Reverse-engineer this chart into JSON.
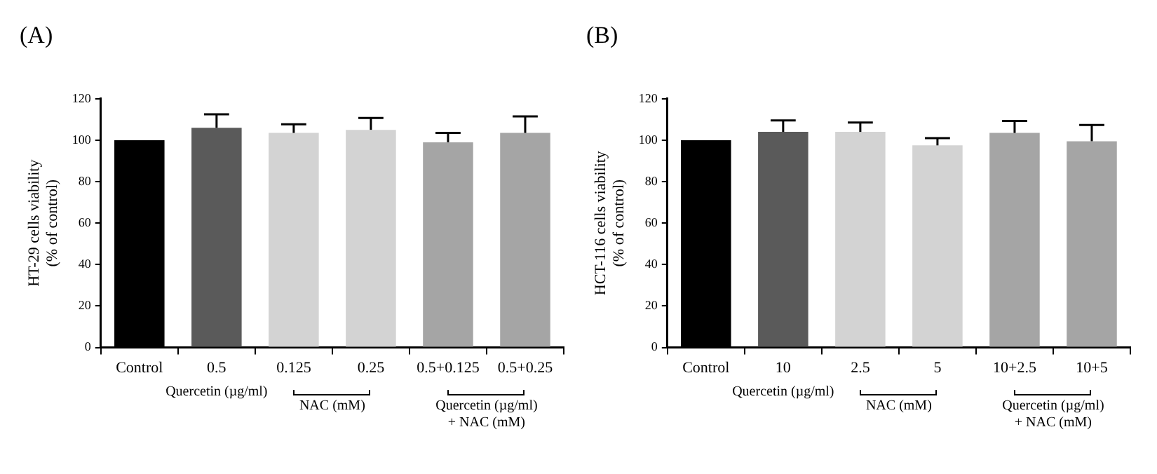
{
  "chart_data": [
    {
      "type": "bar",
      "title": "(A)",
      "ylabel": "HT-29 cells viability\n(% of control)",
      "categories": [
        "Control",
        "0.5",
        "0.125",
        "0.25",
        "0.5+0.125",
        "0.5+0.25"
      ],
      "values": [
        100,
        106,
        103.5,
        105,
        99,
        103.5
      ],
      "colors": [
        "#000000",
        "#5a5a5a",
        "#d3d3d3",
        "#d3d3d3",
        "#a5a5a5",
        "#a5a5a5"
      ],
      "errors": [
        null,
        [
          106,
          112.5
        ],
        [
          103.5,
          107.7
        ],
        [
          105,
          110.7
        ],
        [
          99,
          103.5
        ],
        [
          103.5,
          111.5
        ]
      ],
      "ylim": [
        0,
        120
      ],
      "yticks": [
        0,
        20,
        40,
        60,
        80,
        100,
        120
      ],
      "legend": false,
      "annotations": [
        "Quercetin (µg/ml)",
        "NAC (mM)",
        "Quercetin (µg/ml)\n+ NAC (mM)"
      ]
    },
    {
      "type": "bar",
      "title": "(B)",
      "ylabel": "HCT-116 cells viability\n(% of control)",
      "categories": [
        "Control",
        "10",
        "2.5",
        "5",
        "10+2.5",
        "10+5"
      ],
      "values": [
        100,
        104,
        104,
        97.5,
        103.5,
        99.5
      ],
      "colors": [
        "#000000",
        "#5a5a5a",
        "#d3d3d3",
        "#d3d3d3",
        "#a5a5a5",
        "#a5a5a5"
      ],
      "errors": [
        null,
        [
          104,
          109.5
        ],
        [
          104,
          108.5
        ],
        [
          97.5,
          101
        ],
        [
          103.5,
          109.3
        ],
        [
          99.5,
          107.3
        ]
      ],
      "ylim": [
        0,
        120
      ],
      "yticks": [
        0,
        20,
        40,
        60,
        80,
        100,
        120
      ],
      "legend": false,
      "annotations": [
        "Quercetin (µg/ml)",
        "NAC (mM)",
        "Quercetin (µg/ml)\n+ NAC (mM)"
      ]
    }
  ]
}
